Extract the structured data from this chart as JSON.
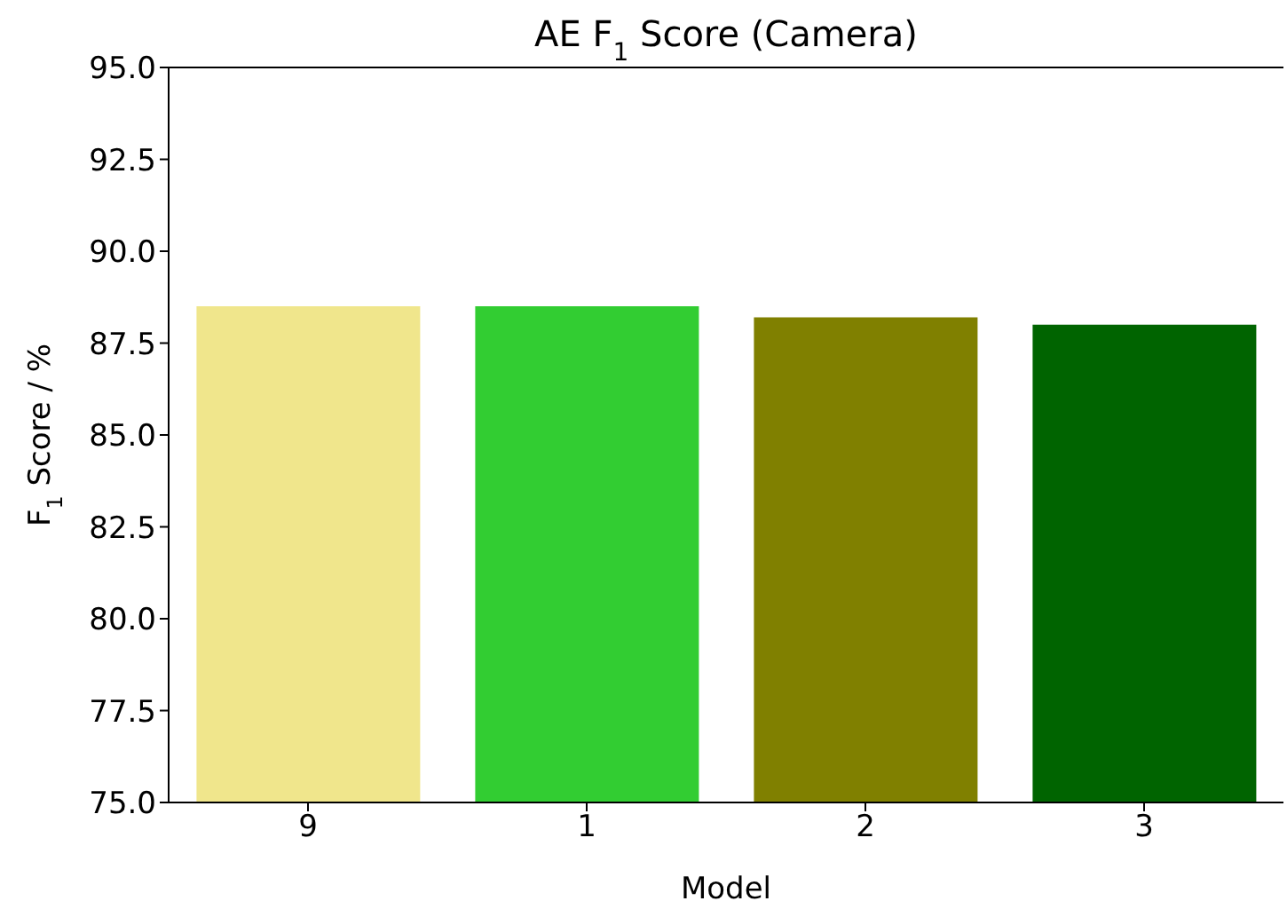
{
  "chart_data": {
    "type": "bar",
    "title": "AE F$_{1}$ Score (Camera)",
    "xlabel": "Model",
    "ylabel": "F$_{1}$ Score / %",
    "categories": [
      "9",
      "1",
      "2",
      "3"
    ],
    "values": [
      88.5,
      88.5,
      88.2,
      88.0
    ],
    "colors": [
      "#f0e68c",
      "#32cd32",
      "#808000",
      "#006400"
    ],
    "ylim": [
      75,
      95
    ],
    "yticks": [
      {
        "value": 75,
        "label": "75.0"
      },
      {
        "value": 77.5,
        "label": "77.5"
      },
      {
        "value": 80,
        "label": "80.0"
      },
      {
        "value": 82.5,
        "label": "82.5"
      },
      {
        "value": 85,
        "label": "85.0"
      },
      {
        "value": 87.5,
        "label": "87.5"
      },
      {
        "value": 90,
        "label": "90.0"
      },
      {
        "value": 92.5,
        "label": "92.5"
      },
      {
        "value": 95,
        "label": "95.0"
      }
    ],
    "grid": false
  }
}
